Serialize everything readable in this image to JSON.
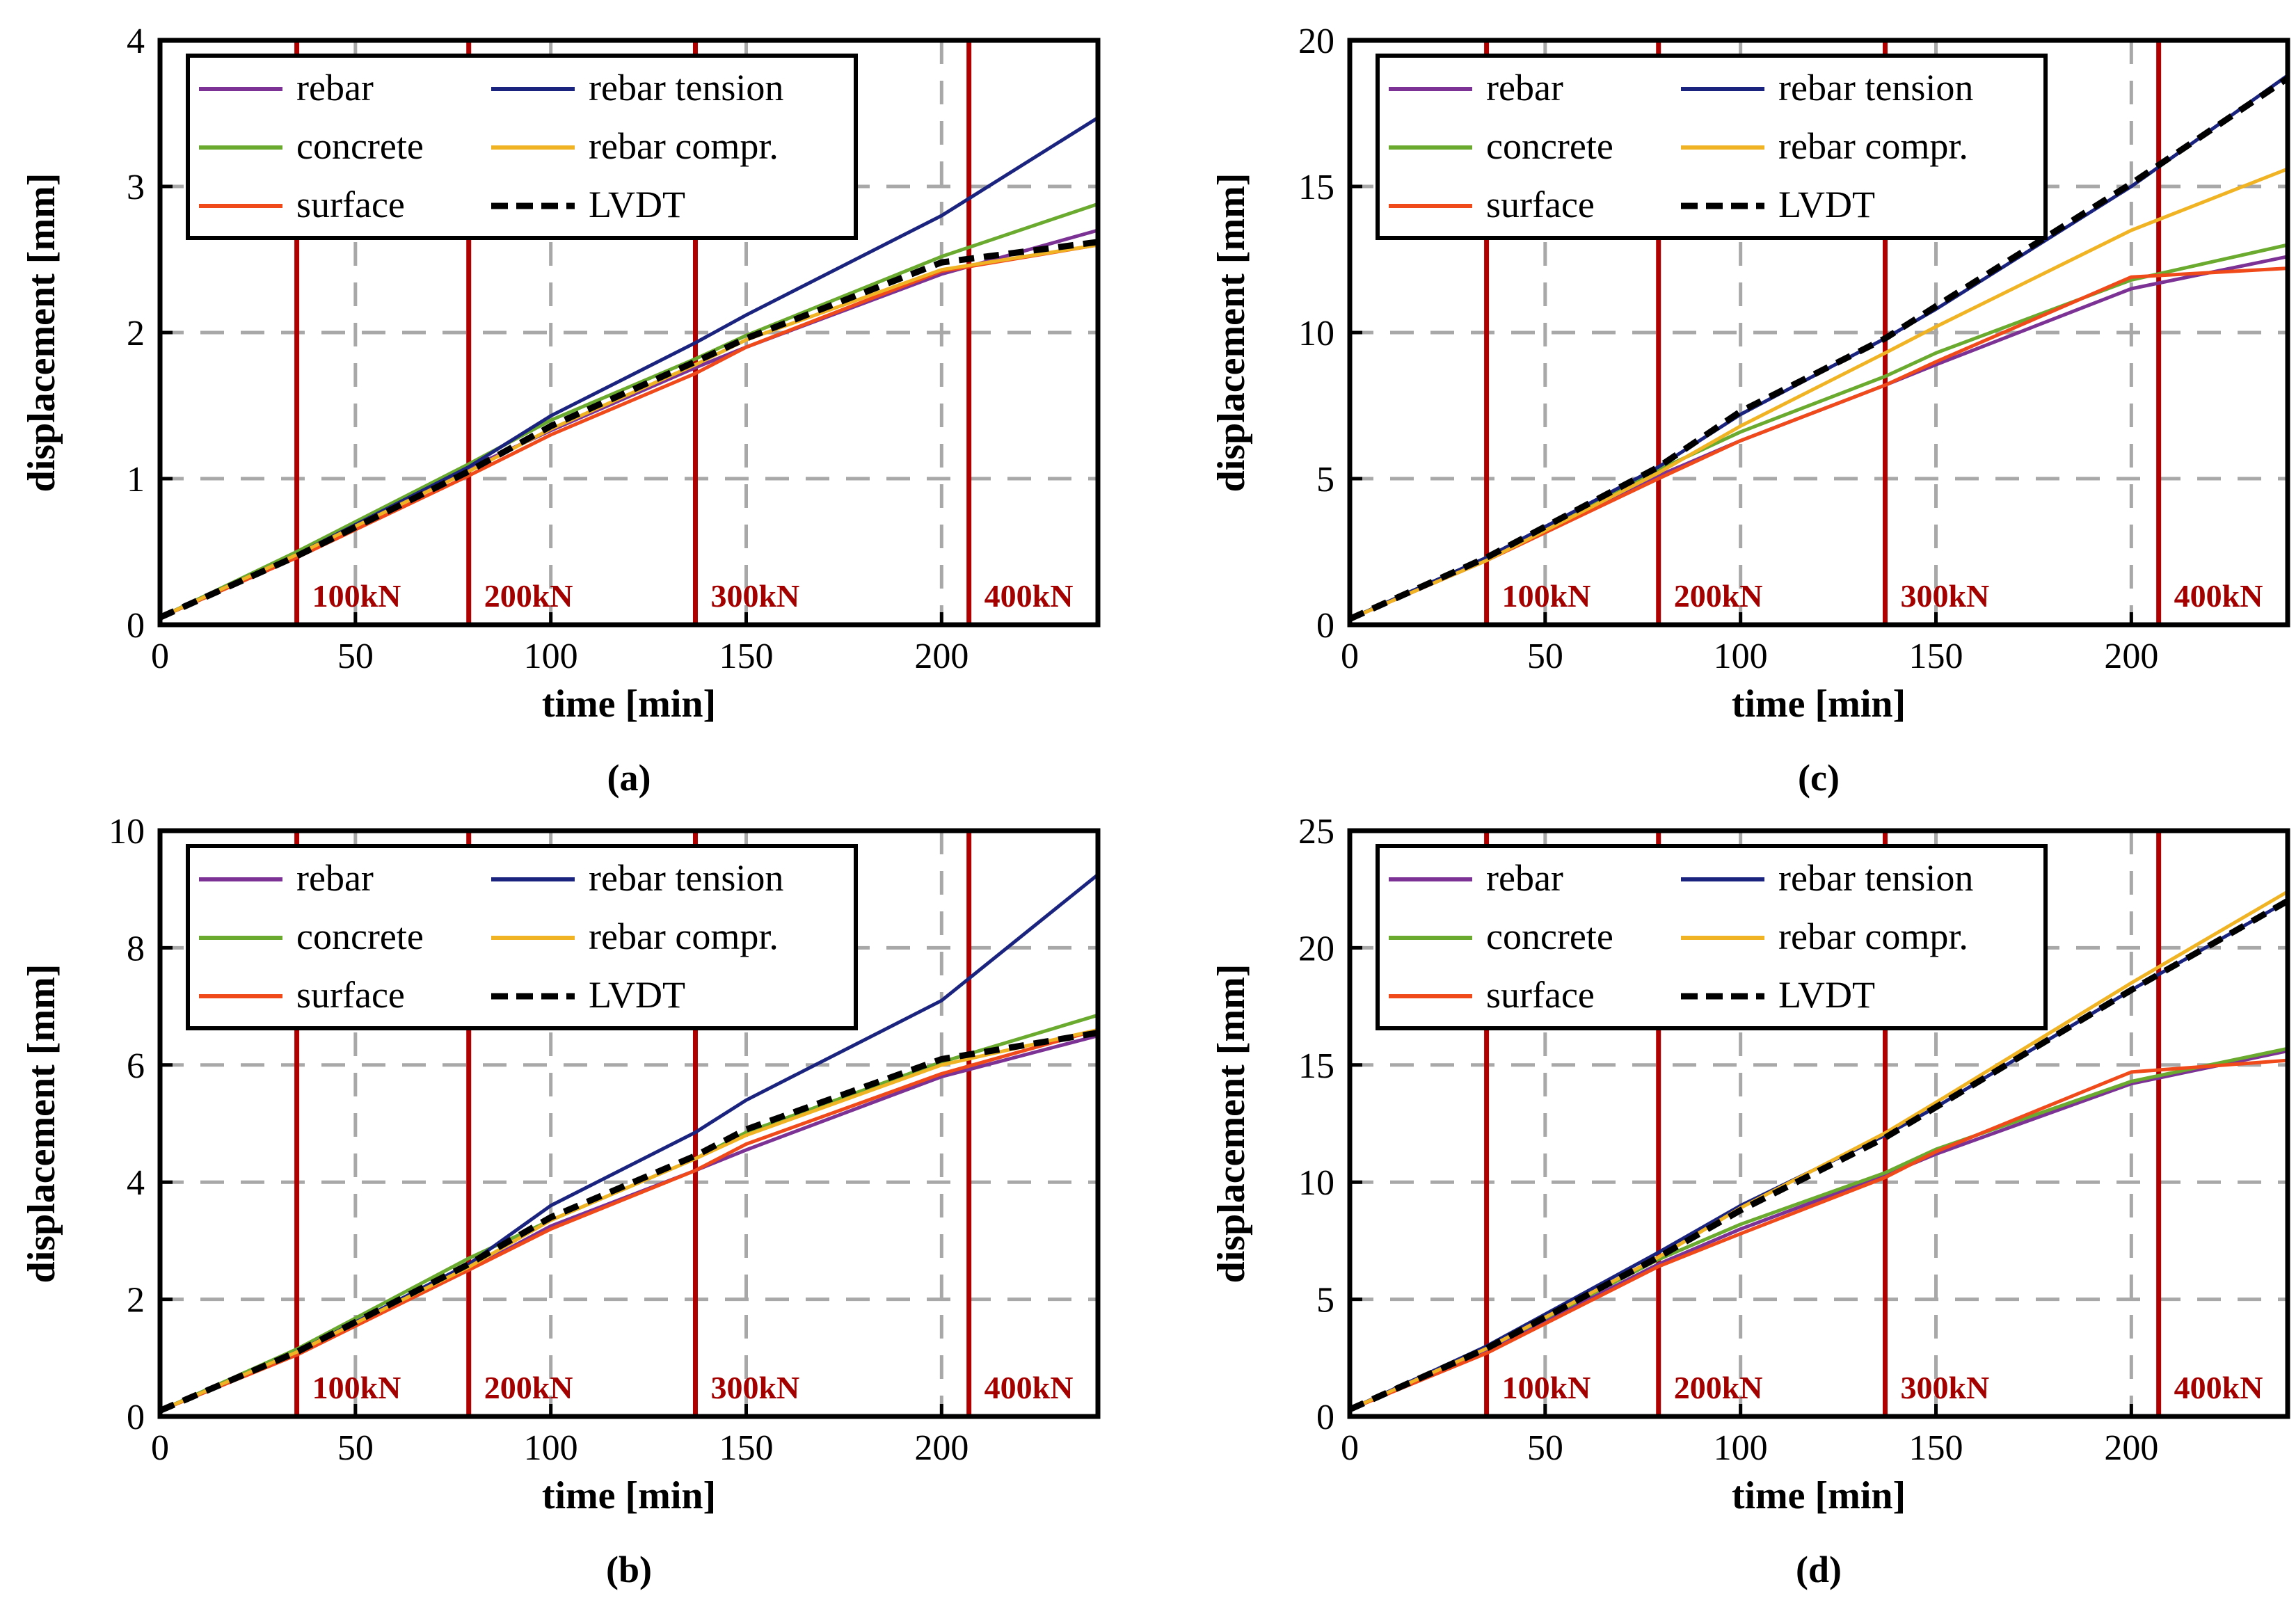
{
  "figure": {
    "legend_entries": [
      {
        "name": "rebar",
        "color": "#7b3294",
        "dash": "solid"
      },
      {
        "name": "concrete",
        "color": "#6aaa2e",
        "dash": "solid"
      },
      {
        "name": "surface",
        "color": "#f04a1a",
        "dash": "solid"
      },
      {
        "name": "rebar tension",
        "color": "#1a237e",
        "dash": "solid"
      },
      {
        "name": "rebar compr.",
        "color": "#f0b323",
        "dash": "solid"
      },
      {
        "name": "LVDT",
        "color": "#000000",
        "dash": "dashed"
      }
    ],
    "load_steps": [
      {
        "time": 35,
        "label": "100kN"
      },
      {
        "time": 79,
        "label": "200kN"
      },
      {
        "time": 137,
        "label": "300kN"
      },
      {
        "time": 207,
        "label": "400kN"
      }
    ],
    "load_line_color": "#b00000"
  },
  "chart_data": [
    {
      "type": "line",
      "panel": "(a)",
      "xlabel": "time [min]",
      "ylabel": "displacement [mm]",
      "xlim": [
        0,
        240
      ],
      "ylim": [
        0,
        4
      ],
      "xticks": [
        0,
        50,
        100,
        150,
        200
      ],
      "yticks": [
        0,
        1,
        2,
        3,
        4
      ],
      "x": [
        0,
        35,
        79,
        100,
        137,
        150,
        200,
        240
      ],
      "series": [
        {
          "name": "rebar",
          "values": [
            0.05,
            0.48,
            1.07,
            1.33,
            1.76,
            1.9,
            2.4,
            2.7
          ]
        },
        {
          "name": "concrete",
          "values": [
            0.05,
            0.5,
            1.1,
            1.4,
            1.82,
            1.98,
            2.52,
            2.88
          ]
        },
        {
          "name": "surface",
          "values": [
            0.05,
            0.46,
            1.02,
            1.3,
            1.72,
            1.9,
            2.42,
            2.6
          ]
        },
        {
          "name": "rebar tension",
          "values": [
            0.05,
            0.48,
            1.08,
            1.43,
            1.93,
            2.12,
            2.8,
            3.47
          ]
        },
        {
          "name": "rebar compr.",
          "values": [
            0.05,
            0.48,
            1.05,
            1.34,
            1.78,
            1.95,
            2.43,
            2.6
          ]
        },
        {
          "name": "LVDT",
          "values": [
            0.05,
            0.47,
            1.05,
            1.36,
            1.8,
            1.96,
            2.48,
            2.62
          ]
        }
      ]
    },
    {
      "type": "line",
      "panel": "(b)",
      "xlabel": "time [min]",
      "ylabel": "displacement [mm]",
      "xlim": [
        0,
        240
      ],
      "ylim": [
        0,
        10
      ],
      "xticks": [
        0,
        50,
        100,
        150,
        200
      ],
      "yticks": [
        0,
        2,
        4,
        6,
        8,
        10
      ],
      "x": [
        0,
        35,
        79,
        100,
        137,
        150,
        200,
        240
      ],
      "series": [
        {
          "name": "rebar",
          "values": [
            0.1,
            1.1,
            2.5,
            3.25,
            4.2,
            4.55,
            5.8,
            6.5
          ]
        },
        {
          "name": "concrete",
          "values": [
            0.1,
            1.15,
            2.7,
            3.35,
            4.4,
            4.85,
            6.05,
            6.85
          ]
        },
        {
          "name": "surface",
          "values": [
            0.1,
            1.05,
            2.5,
            3.2,
            4.2,
            4.65,
            5.85,
            6.6
          ]
        },
        {
          "name": "rebar tension",
          "values": [
            0.1,
            1.1,
            2.6,
            3.6,
            4.85,
            5.4,
            7.1,
            9.25
          ]
        },
        {
          "name": "rebar compr.",
          "values": [
            0.1,
            1.1,
            2.55,
            3.35,
            4.4,
            4.8,
            6.0,
            6.6
          ]
        },
        {
          "name": "LVDT",
          "values": [
            0.1,
            1.1,
            2.6,
            3.4,
            4.45,
            4.9,
            6.1,
            6.55
          ]
        }
      ]
    },
    {
      "type": "line",
      "panel": "(c)",
      "xlabel": "time [min]",
      "ylabel": "displacement [mm]",
      "xlim": [
        0,
        240
      ],
      "ylim": [
        0,
        20
      ],
      "xticks": [
        0,
        50,
        100,
        150,
        200
      ],
      "yticks": [
        0,
        5,
        10,
        15,
        20
      ],
      "x": [
        0,
        35,
        79,
        100,
        137,
        150,
        200,
        240
      ],
      "series": [
        {
          "name": "rebar",
          "values": [
            0.2,
            2.2,
            5.1,
            6.3,
            8.2,
            8.9,
            11.5,
            12.6
          ]
        },
        {
          "name": "concrete",
          "values": [
            0.2,
            2.3,
            5.3,
            6.6,
            8.5,
            9.3,
            11.8,
            13.0
          ]
        },
        {
          "name": "surface",
          "values": [
            0.2,
            2.2,
            5.0,
            6.3,
            8.2,
            9.0,
            11.9,
            12.2
          ]
        },
        {
          "name": "rebar tension",
          "values": [
            0.2,
            2.3,
            5.4,
            7.2,
            9.8,
            10.8,
            15.0,
            18.8
          ]
        },
        {
          "name": "rebar compr.",
          "values": [
            0.2,
            2.2,
            5.2,
            6.8,
            9.3,
            10.2,
            13.5,
            15.6
          ]
        },
        {
          "name": "LVDT",
          "values": [
            0.2,
            2.3,
            5.4,
            7.3,
            9.8,
            10.9,
            15.1,
            18.7
          ]
        }
      ]
    },
    {
      "type": "line",
      "panel": "(d)",
      "xlabel": "time [min]",
      "ylabel": "displacement [mm]",
      "xlim": [
        0,
        240
      ],
      "ylim": [
        0,
        25
      ],
      "xticks": [
        0,
        50,
        100,
        150,
        200
      ],
      "yticks": [
        0,
        5,
        10,
        15,
        20,
        25
      ],
      "x": [
        0,
        35,
        79,
        100,
        137,
        150,
        200,
        240
      ],
      "series": [
        {
          "name": "rebar",
          "values": [
            0.3,
            2.8,
            6.5,
            8.0,
            10.3,
            11.2,
            14.2,
            15.6
          ]
        },
        {
          "name": "concrete",
          "values": [
            0.3,
            2.9,
            6.7,
            8.2,
            10.4,
            11.4,
            14.3,
            15.7
          ]
        },
        {
          "name": "surface",
          "values": [
            0.3,
            2.7,
            6.4,
            7.8,
            10.2,
            11.3,
            14.7,
            15.2
          ]
        },
        {
          "name": "rebar tension",
          "values": [
            0.3,
            3.0,
            7.0,
            9.0,
            12.0,
            13.2,
            18.2,
            22.0
          ]
        },
        {
          "name": "rebar compr.",
          "values": [
            0.3,
            2.9,
            6.8,
            8.9,
            12.1,
            13.4,
            18.5,
            22.4
          ]
        },
        {
          "name": "LVDT",
          "values": [
            0.3,
            2.9,
            6.8,
            8.8,
            11.9,
            13.2,
            18.2,
            22.0
          ]
        }
      ]
    }
  ]
}
